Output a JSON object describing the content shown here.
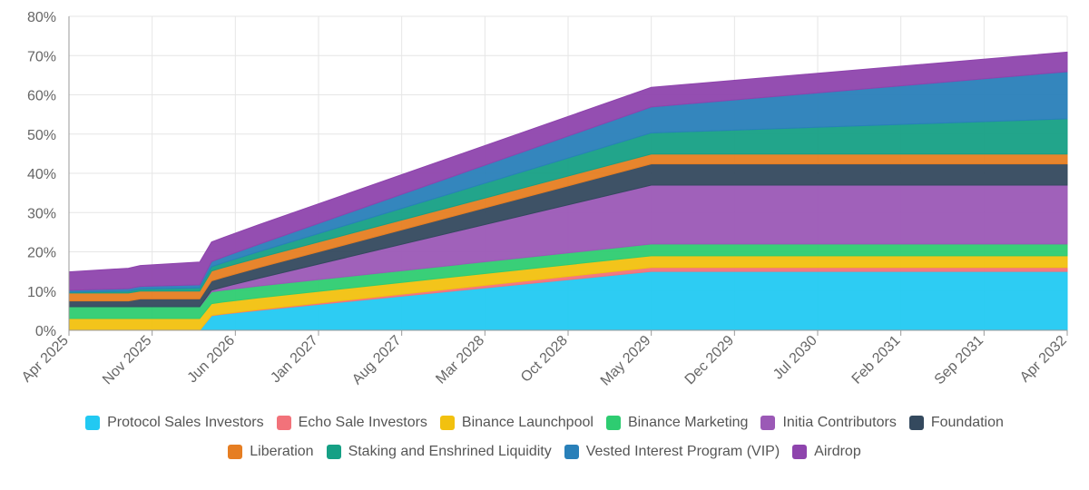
{
  "chart_data": {
    "type": "area",
    "stacked": true,
    "title": "",
    "xlabel": "",
    "ylabel": "",
    "ylim": [
      0,
      80
    ],
    "yticks": [
      0,
      10,
      20,
      30,
      40,
      50,
      60,
      70,
      80
    ],
    "ytick_labels": [
      "0%",
      "10%",
      "20%",
      "30%",
      "40%",
      "50%",
      "60%",
      "70%",
      "80%"
    ],
    "xlim": [
      0,
      84
    ],
    "xticks": [
      0,
      7,
      14,
      21,
      28,
      35,
      42,
      49,
      56,
      63,
      70,
      77,
      84
    ],
    "xtick_labels": [
      "Apr 2025",
      "Nov 2025",
      "Jun 2026",
      "Jan 2027",
      "Aug 2027",
      "Mar 2028",
      "Oct 2028",
      "May 2029",
      "Dec 2029",
      "Jul 2030",
      "Feb 2031",
      "Sep 2031",
      "Apr 2032"
    ],
    "x_unit": "months since Apr 2025",
    "grid": true,
    "legend_position": "bottom",
    "series": [
      {
        "name": "Protocol Sales Investors",
        "color": "#22c9f2",
        "points": [
          [
            0,
            0
          ],
          [
            11,
            0
          ],
          [
            12,
            3.7
          ],
          [
            13,
            4.1
          ],
          [
            16,
            5.1
          ],
          [
            49,
            15
          ],
          [
            84,
            15
          ]
        ]
      },
      {
        "name": "Echo Sale Investors",
        "color": "#f2727a",
        "points": [
          [
            0,
            0
          ],
          [
            11,
            0
          ],
          [
            12,
            0.1
          ],
          [
            49,
            1
          ],
          [
            84,
            1
          ]
        ]
      },
      {
        "name": "Binance Launchpool",
        "color": "#f2c10f",
        "points": [
          [
            0,
            3
          ],
          [
            11,
            3
          ],
          [
            12,
            3
          ],
          [
            49,
            3
          ],
          [
            84,
            3
          ]
        ]
      },
      {
        "name": "Binance Marketing",
        "color": "#2ecc71",
        "points": [
          [
            0,
            3
          ],
          [
            11,
            3
          ],
          [
            12,
            3
          ],
          [
            49,
            3
          ],
          [
            84,
            3
          ]
        ]
      },
      {
        "name": "Initia Contributors",
        "color": "#9b59b6",
        "points": [
          [
            0,
            0
          ],
          [
            11,
            0
          ],
          [
            12,
            0.4
          ],
          [
            49,
            15
          ],
          [
            84,
            15
          ]
        ]
      },
      {
        "name": "Foundation",
        "color": "#34495e",
        "points": [
          [
            0,
            1.5
          ],
          [
            5,
            1.5
          ],
          [
            6,
            2
          ],
          [
            11,
            2
          ],
          [
            12,
            2.4
          ],
          [
            49,
            5.4
          ],
          [
            84,
            5.4
          ]
        ]
      },
      {
        "name": "Liberation",
        "color": "#e67e22",
        "points": [
          [
            0,
            2
          ],
          [
            11,
            2
          ],
          [
            12,
            2.5
          ],
          [
            16,
            2.5
          ],
          [
            49,
            2.5
          ],
          [
            84,
            2.5
          ]
        ]
      },
      {
        "name": "Staking and Enshrined Liquidity",
        "color": "#16a085",
        "points": [
          [
            0,
            0.2
          ],
          [
            11,
            0.8
          ],
          [
            12,
            1.1
          ],
          [
            49,
            5.4
          ],
          [
            84,
            9
          ]
        ]
      },
      {
        "name": "Vested Interest Program (VIP)",
        "color": "#2980b9",
        "points": [
          [
            0,
            0.5
          ],
          [
            11,
            0.8
          ],
          [
            12,
            1.3
          ],
          [
            49,
            6.6
          ],
          [
            84,
            12
          ]
        ]
      },
      {
        "name": "Airdrop",
        "color": "#8e44ad",
        "points": [
          [
            0,
            4.7
          ],
          [
            11,
            5.8
          ],
          [
            12,
            5
          ],
          [
            49,
            5
          ],
          [
            84,
            5
          ]
        ]
      }
    ]
  }
}
